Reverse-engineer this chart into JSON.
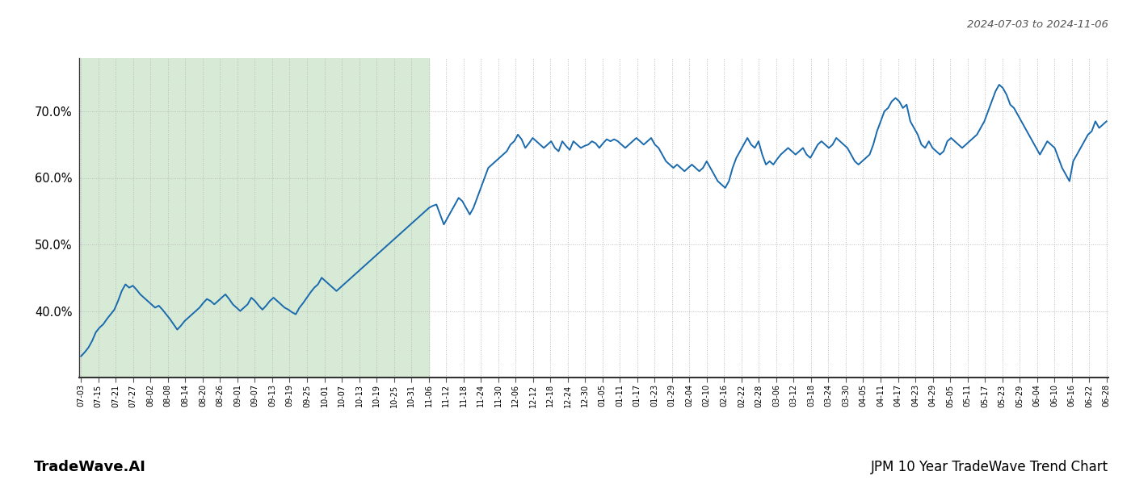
{
  "title": "JPM 10 Year TradeWave Trend Chart",
  "watermark": "TradeWave.AI",
  "date_range_label": "2024-07-03 to 2024-11-06",
  "highlight_color": "#d6ead6",
  "line_color": "#1a6aad",
  "line_width": 1.4,
  "background_color": "#ffffff",
  "grid_color": "#bbbbbb",
  "grid_style": ":",
  "ylim": [
    30,
    78
  ],
  "yticks": [
    40.0,
    50.0,
    60.0,
    70.0
  ],
  "x_labels": [
    "07-03",
    "07-15",
    "07-21",
    "07-27",
    "08-02",
    "08-08",
    "08-14",
    "08-20",
    "08-26",
    "09-01",
    "09-07",
    "09-13",
    "09-19",
    "09-25",
    "10-01",
    "10-07",
    "10-13",
    "10-19",
    "10-25",
    "10-31",
    "11-06",
    "11-12",
    "11-18",
    "11-24",
    "11-30",
    "12-06",
    "12-12",
    "12-18",
    "12-24",
    "12-30",
    "01-05",
    "01-11",
    "01-17",
    "01-23",
    "01-29",
    "02-04",
    "02-10",
    "02-16",
    "02-22",
    "02-28",
    "03-06",
    "03-12",
    "03-18",
    "03-24",
    "03-30",
    "04-05",
    "04-11",
    "04-17",
    "04-23",
    "04-29",
    "05-05",
    "05-11",
    "05-17",
    "05-23",
    "05-29",
    "06-04",
    "06-10",
    "06-16",
    "06-22",
    "06-28"
  ],
  "highlight_label_start": "07-03",
  "highlight_label_end": "11-06",
  "values": [
    33.2,
    33.8,
    34.5,
    35.5,
    36.8,
    37.5,
    38.0,
    38.8,
    39.5,
    40.2,
    41.5,
    43.0,
    44.0,
    43.5,
    43.8,
    43.2,
    42.5,
    42.0,
    41.5,
    41.0,
    40.5,
    40.8,
    40.2,
    39.5,
    38.8,
    38.0,
    37.2,
    37.8,
    38.5,
    39.0,
    39.5,
    40.0,
    40.5,
    41.2,
    41.8,
    41.5,
    41.0,
    41.5,
    42.0,
    42.5,
    41.8,
    41.0,
    40.5,
    40.0,
    40.5,
    41.0,
    42.0,
    41.5,
    40.8,
    40.2,
    40.8,
    41.5,
    42.0,
    41.5,
    41.0,
    40.5,
    40.2,
    39.8,
    39.5,
    40.5,
    41.2,
    42.0,
    42.8,
    43.5,
    44.0,
    45.0,
    44.5,
    44.0,
    43.5,
    43.0,
    43.5,
    44.0,
    44.5,
    45.0,
    45.5,
    46.0,
    46.5,
    47.0,
    47.5,
    48.0,
    48.5,
    49.0,
    49.5,
    50.0,
    50.5,
    51.0,
    51.5,
    52.0,
    52.5,
    53.0,
    53.5,
    54.0,
    54.5,
    55.0,
    55.5,
    55.8,
    56.0,
    54.5,
    53.0,
    54.0,
    55.0,
    56.0,
    57.0,
    56.5,
    55.5,
    54.5,
    55.5,
    57.0,
    58.5,
    60.0,
    61.5,
    62.0,
    62.5,
    63.0,
    63.5,
    64.0,
    65.0,
    65.5,
    66.5,
    65.8,
    64.5,
    65.2,
    66.0,
    65.5,
    65.0,
    64.5,
    65.0,
    65.5,
    64.5,
    64.0,
    65.5,
    64.8,
    64.2,
    65.5,
    65.0,
    64.5,
    64.8,
    65.0,
    65.5,
    65.2,
    64.5,
    65.2,
    65.8,
    65.5,
    65.8,
    65.5,
    65.0,
    64.5,
    65.0,
    65.5,
    66.0,
    65.5,
    65.0,
    65.5,
    66.0,
    65.0,
    64.5,
    63.5,
    62.5,
    62.0,
    61.5,
    62.0,
    61.5,
    61.0,
    61.5,
    62.0,
    61.5,
    61.0,
    61.5,
    62.5,
    61.5,
    60.5,
    59.5,
    59.0,
    58.5,
    59.5,
    61.5,
    63.0,
    64.0,
    65.0,
    66.0,
    65.0,
    64.5,
    65.5,
    63.5,
    62.0,
    62.5,
    62.0,
    62.8,
    63.5,
    64.0,
    64.5,
    64.0,
    63.5,
    64.0,
    64.5,
    63.5,
    63.0,
    64.0,
    65.0,
    65.5,
    65.0,
    64.5,
    65.0,
    66.0,
    65.5,
    65.0,
    64.5,
    63.5,
    62.5,
    62.0,
    62.5,
    63.0,
    63.5,
    65.0,
    67.0,
    68.5,
    70.0,
    70.5,
    71.5,
    72.0,
    71.5,
    70.5,
    71.0,
    68.5,
    67.5,
    66.5,
    65.0,
    64.5,
    65.5,
    64.5,
    64.0,
    63.5,
    64.0,
    65.5,
    66.0,
    65.5,
    65.0,
    64.5,
    65.0,
    65.5,
    66.0,
    66.5,
    67.5,
    68.5,
    70.0,
    71.5,
    73.0,
    74.0,
    73.5,
    72.5,
    71.0,
    70.5,
    69.5,
    68.5,
    67.5,
    66.5,
    65.5,
    64.5,
    63.5,
    64.5,
    65.5,
    65.0,
    64.5,
    63.0,
    61.5,
    60.5,
    59.5,
    62.5,
    63.5,
    64.5,
    65.5,
    66.5,
    67.0,
    68.5,
    67.5,
    68.0,
    68.5
  ]
}
